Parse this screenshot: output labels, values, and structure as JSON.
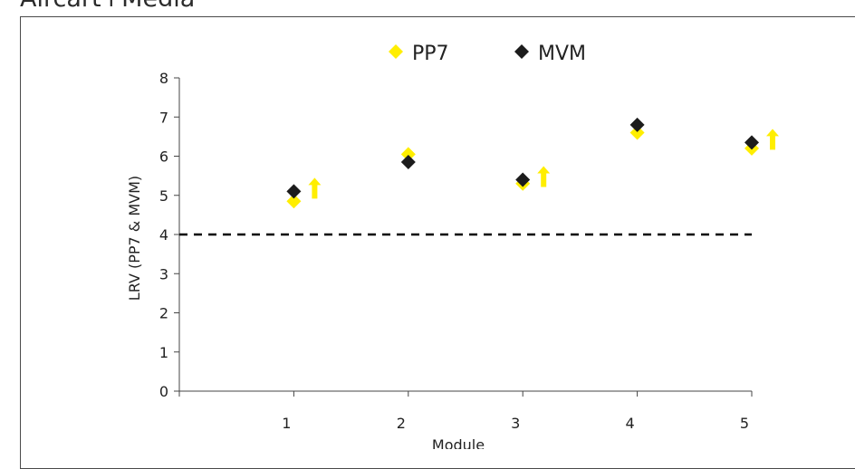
{
  "page": {
    "title": "Aircart+Media"
  },
  "chart_data": {
    "type": "scatter",
    "xlabel": "Module",
    "ylabel": "LRV (PP7 & MVM)",
    "categories": [
      "1",
      "2",
      "3",
      "4",
      "5"
    ],
    "yticks": [
      "0",
      "1",
      "2",
      "3",
      "4",
      "5",
      "6",
      "7",
      "8"
    ],
    "ylim": [
      0,
      8
    ],
    "xlim": [
      0,
      5
    ],
    "grid": false,
    "legend_position": "top-center",
    "series": [
      {
        "name": "PP7",
        "marker": "diamond",
        "color": "#ffee00",
        "x": [
          1,
          2,
          3,
          4,
          5
        ],
        "values": [
          4.85,
          6.05,
          5.3,
          6.6,
          6.2
        ]
      },
      {
        "name": "MVM",
        "marker": "diamond",
        "color": "#1c1c1c",
        "x": [
          1,
          2,
          3,
          4,
          5
        ],
        "values": [
          5.1,
          5.85,
          5.4,
          6.8,
          6.35
        ]
      }
    ],
    "reference_line": {
      "y": 4,
      "style": "dashed",
      "color": "#000000"
    },
    "annotations": {
      "arrow_icon": "up-arrow-icon",
      "arrow_color": "#ffee00",
      "arrow_modules": [
        1,
        3,
        5
      ]
    }
  }
}
